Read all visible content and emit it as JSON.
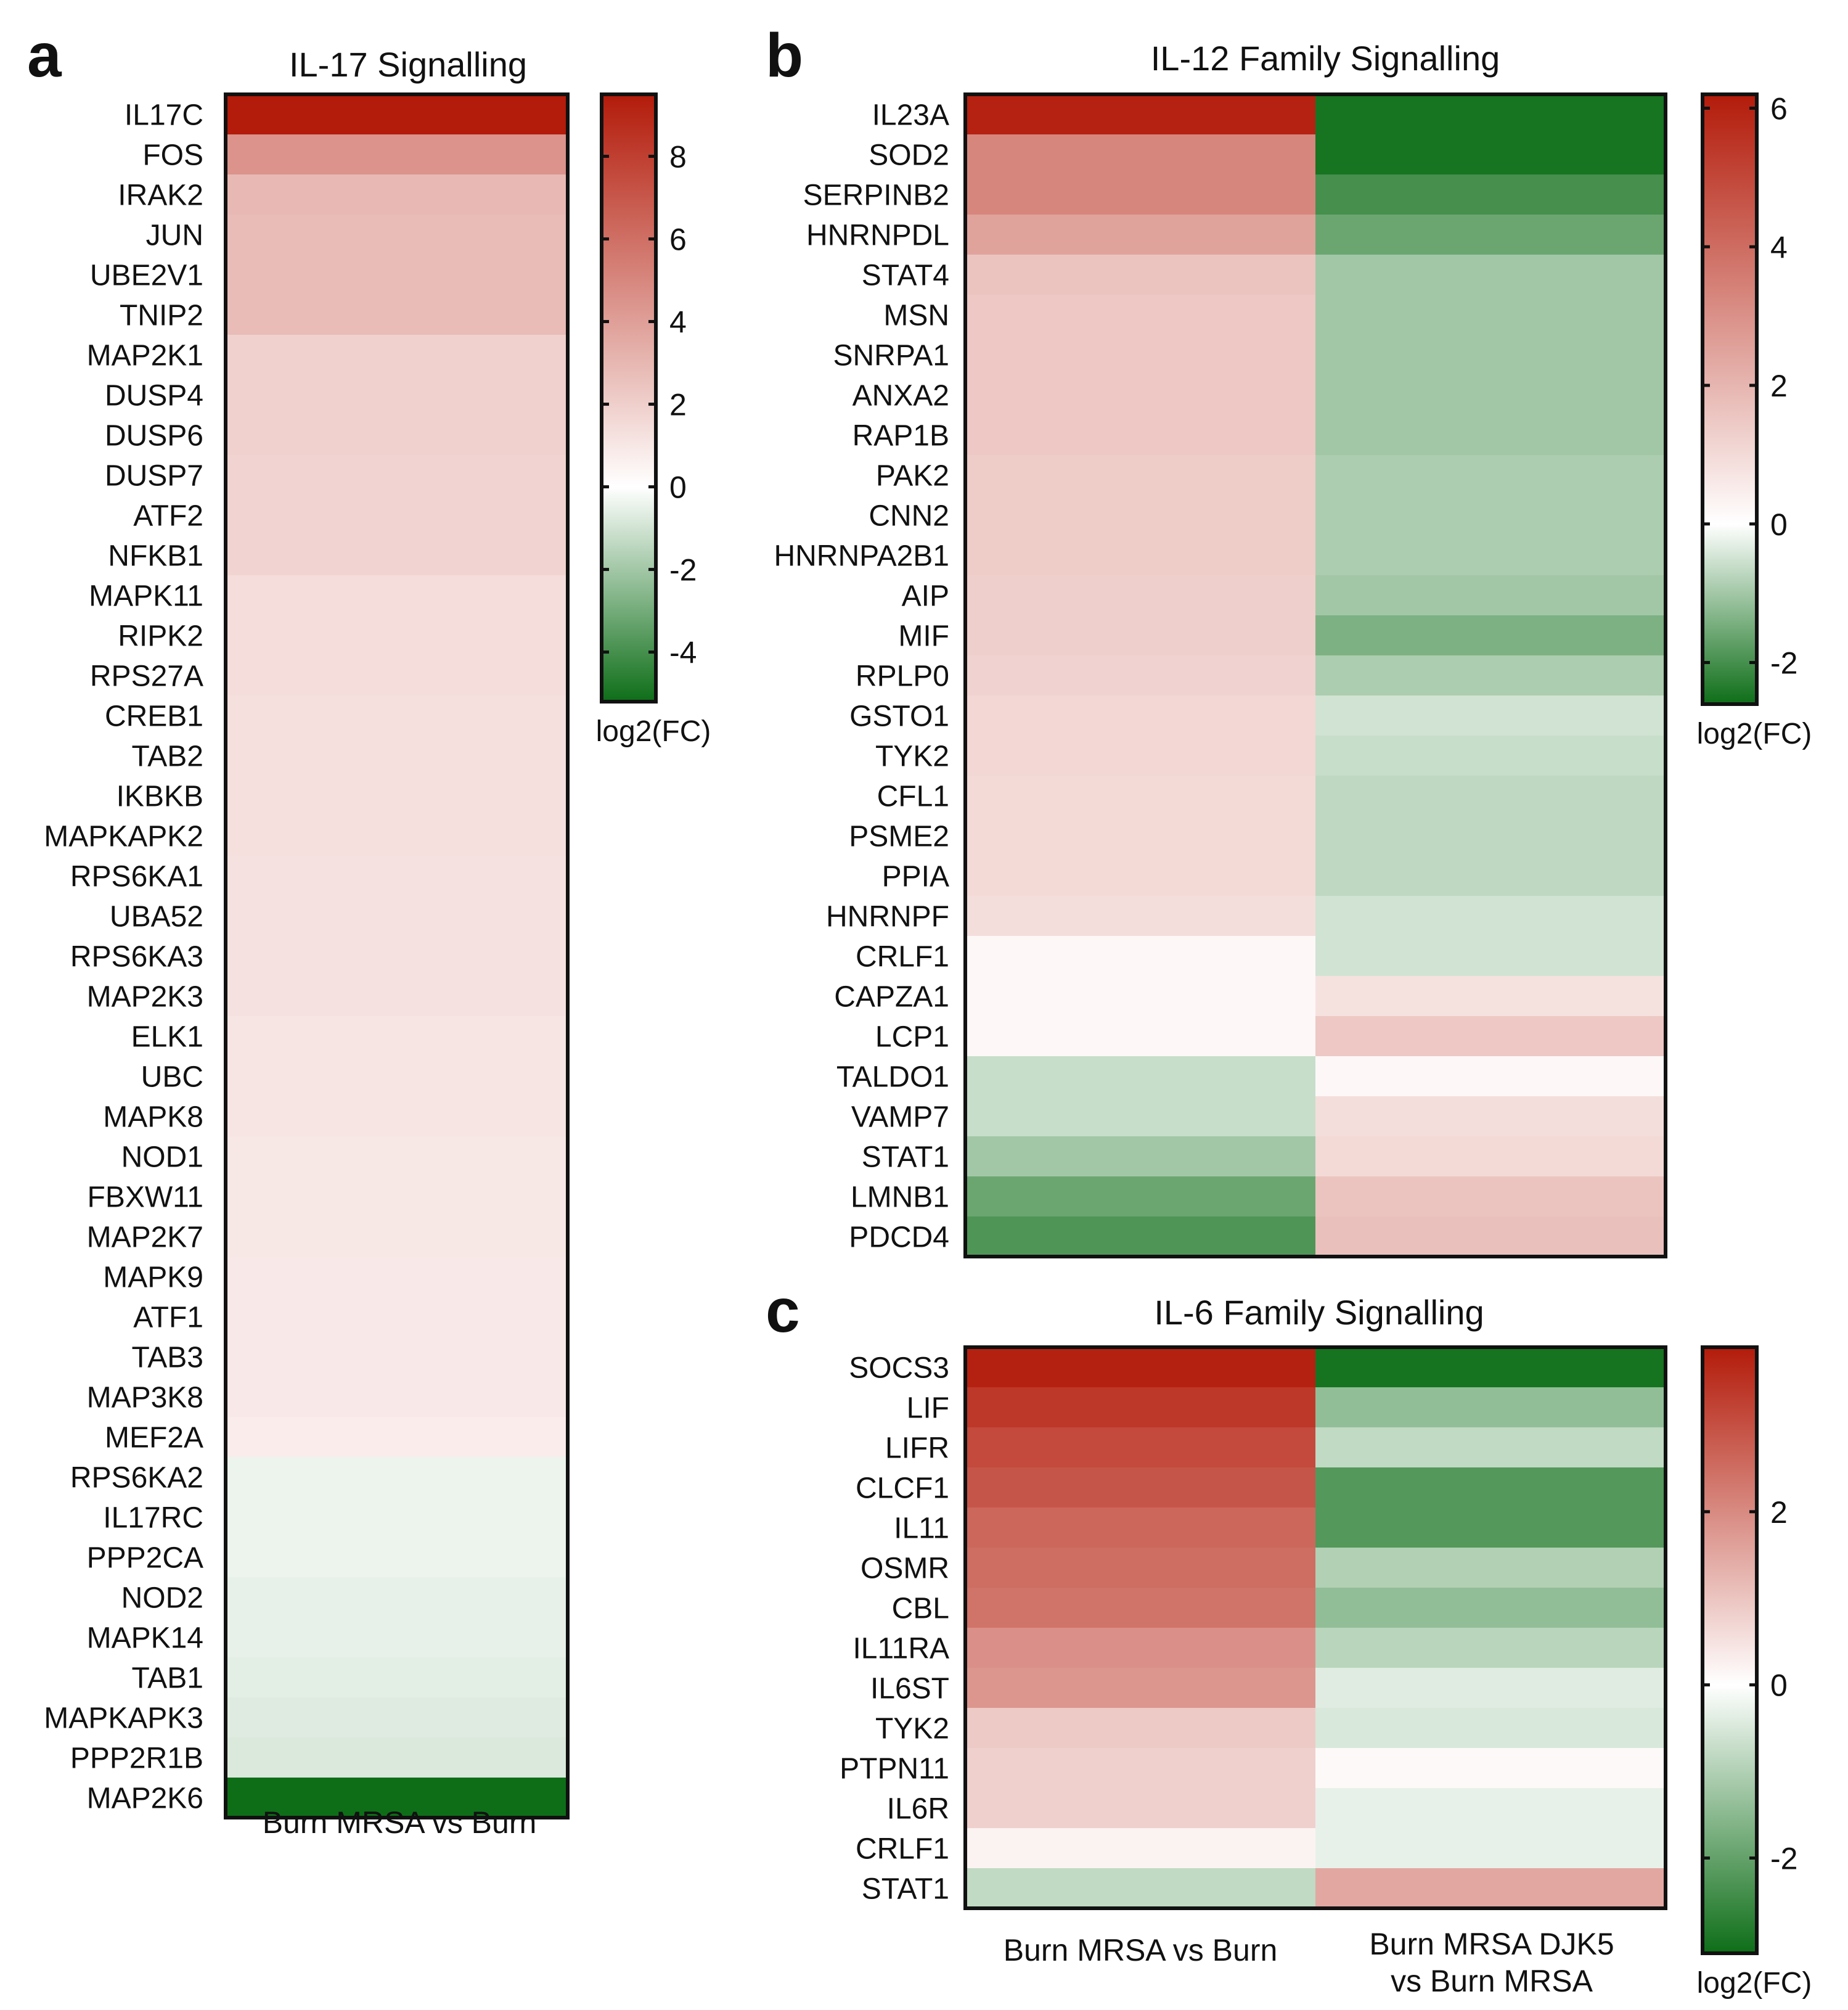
{
  "chart_data": [
    {
      "type": "heatmap",
      "panel": "a",
      "title": "IL-17 Signalling",
      "columns": [
        "Burn MRSA vs Burn"
      ],
      "rows": [
        "IL17C",
        "FOS",
        "IRAK2",
        "JUN",
        "UBE2V1",
        "TNIP2",
        "MAP2K1",
        "DUSP4",
        "DUSP6",
        "DUSP7",
        "ATF2",
        "NFKB1",
        "MAPK11",
        "RIPK2",
        "RPS27A",
        "CREB1",
        "TAB2",
        "IKBKB",
        "MAPKAPK2",
        "RPS6KA1",
        "UBA52",
        "RPS6KA3",
        "MAP2K3",
        "ELK1",
        "UBC",
        "MAPK8",
        "NOD1",
        "FBXW11",
        "MAP2K7",
        "MAPK9",
        "ATF1",
        "TAB3",
        "MAP3K8",
        "MEF2A",
        "RPS6KA2",
        "IL17RC",
        "PPP2CA",
        "NOD2",
        "MAPK14",
        "TAB1",
        "MAPKAPK3",
        "PPP2R1B",
        "MAP2K6"
      ],
      "values": [
        [
          9.5
        ],
        [
          4.5
        ],
        [
          2.9
        ],
        [
          2.8
        ],
        [
          2.8
        ],
        [
          2.8
        ],
        [
          1.9
        ],
        [
          1.9
        ],
        [
          1.9
        ],
        [
          1.8
        ],
        [
          1.8
        ],
        [
          1.8
        ],
        [
          1.4
        ],
        [
          1.4
        ],
        [
          1.4
        ],
        [
          1.3
        ],
        [
          1.3
        ],
        [
          1.3
        ],
        [
          1.3
        ],
        [
          1.2
        ],
        [
          1.2
        ],
        [
          1.2
        ],
        [
          1.2
        ],
        [
          1.1
        ],
        [
          1.1
        ],
        [
          1.1
        ],
        [
          1.0
        ],
        [
          1.0
        ],
        [
          1.0
        ],
        [
          0.9
        ],
        [
          0.9
        ],
        [
          0.9
        ],
        [
          0.9
        ],
        [
          0.8
        ],
        [
          -0.4
        ],
        [
          -0.4
        ],
        [
          -0.4
        ],
        [
          -0.5
        ],
        [
          -0.5
        ],
        [
          -0.6
        ],
        [
          -0.7
        ],
        [
          -0.8
        ],
        [
          -5.2
        ]
      ],
      "colorbar": {
        "label": "log2(FC)",
        "range": [
          -5.2,
          9.5
        ],
        "ticks": [
          -4,
          -2,
          0,
          2,
          4,
          6,
          8
        ],
        "tick_labels": [
          "-4",
          "-2",
          "0",
          "2",
          "4",
          "6",
          "8"
        ]
      }
    },
    {
      "type": "heatmap",
      "panel": "b",
      "title": "IL-12 Family Signalling",
      "columns": [
        "Burn MRSA vs Burn",
        "Burn MRSA DJK5 vs Burn MRSA"
      ],
      "rows": [
        "IL23A",
        "SOD2",
        "SERPINB2",
        "HNRNPDL",
        "STAT4",
        "MSN",
        "SNRPA1",
        "ANXA2",
        "RAP1B",
        "PAK2",
        "CNN2",
        "HNRNPA2B1",
        "AIP",
        "MIF",
        "RPLP0",
        "GSTO1",
        "TYK2",
        "CFL1",
        "PSME2",
        "PPIA",
        "HNRNPF",
        "CRLF1",
        "CAPZA1",
        "LCP1",
        "TALDO1",
        "VAMP7",
        "STAT1",
        "LMNB1",
        "PDCD4"
      ],
      "values": [
        [
          6.0,
          -2.5
        ],
        [
          3.3,
          -2.5
        ],
        [
          3.3,
          -2.0
        ],
        [
          2.5,
          -1.6
        ],
        [
          1.6,
          -1.0
        ],
        [
          1.5,
          -1.0
        ],
        [
          1.5,
          -1.0
        ],
        [
          1.5,
          -1.0
        ],
        [
          1.5,
          -1.0
        ],
        [
          1.4,
          -0.9
        ],
        [
          1.4,
          -0.9
        ],
        [
          1.4,
          -0.9
        ],
        [
          1.3,
          -1.0
        ],
        [
          1.3,
          -1.4
        ],
        [
          1.2,
          -0.9
        ],
        [
          1.1,
          -0.5
        ],
        [
          1.1,
          -0.6
        ],
        [
          1.0,
          -0.7
        ],
        [
          1.0,
          -0.7
        ],
        [
          1.0,
          -0.7
        ],
        [
          0.9,
          -0.5
        ],
        [
          0.2,
          -0.5
        ],
        [
          0.2,
          0.8
        ],
        [
          0.2,
          1.5
        ],
        [
          -0.6,
          0.2
        ],
        [
          -0.6,
          0.9
        ],
        [
          -1.0,
          1.0
        ],
        [
          -1.6,
          1.6
        ],
        [
          -1.9,
          1.7
        ]
      ],
      "colorbar": {
        "label": "log2(FC)",
        "range": [
          -2.6,
          6.2
        ],
        "ticks": [
          -2,
          0,
          2,
          4,
          6
        ],
        "tick_labels": [
          "-2",
          "0",
          "2",
          "4",
          "6"
        ]
      }
    },
    {
      "type": "heatmap",
      "panel": "c",
      "title": "IL-6 Family Signalling",
      "columns": [
        "Burn MRSA vs Burn",
        "Burn MRSA DJK5 vs Burn MRSA"
      ],
      "rows": [
        "SOCS3",
        "LIF",
        "LIFR",
        "CLCF1",
        "IL11",
        "OSMR",
        "CBL",
        "IL11RA",
        "IL6ST",
        "TYK2",
        "PTPN11",
        "IL6R",
        "CRLF1",
        "STAT1"
      ],
      "values": [
        [
          3.8,
          -3.0
        ],
        [
          3.4,
          -1.4
        ],
        [
          3.1,
          -0.8
        ],
        [
          2.9,
          -2.2
        ],
        [
          2.6,
          -2.2
        ],
        [
          2.5,
          -1.0
        ],
        [
          2.4,
          -1.4
        ],
        [
          1.9,
          -0.9
        ],
        [
          1.8,
          -0.4
        ],
        [
          0.9,
          -0.5
        ],
        [
          0.8,
          0.1
        ],
        [
          0.8,
          -0.3
        ],
        [
          0.2,
          -0.3
        ],
        [
          -0.8,
          1.5
        ]
      ],
      "colorbar": {
        "label": "log2(FC)",
        "range": [
          -3.1,
          3.9
        ],
        "ticks": [
          -2,
          0,
          2
        ],
        "tick_labels": [
          "-2",
          "0",
          "2"
        ]
      }
    }
  ],
  "colors": {
    "high": "#b31b0a",
    "mid": "#ffffff",
    "low": "#0e6e18",
    "border": "#111111"
  }
}
